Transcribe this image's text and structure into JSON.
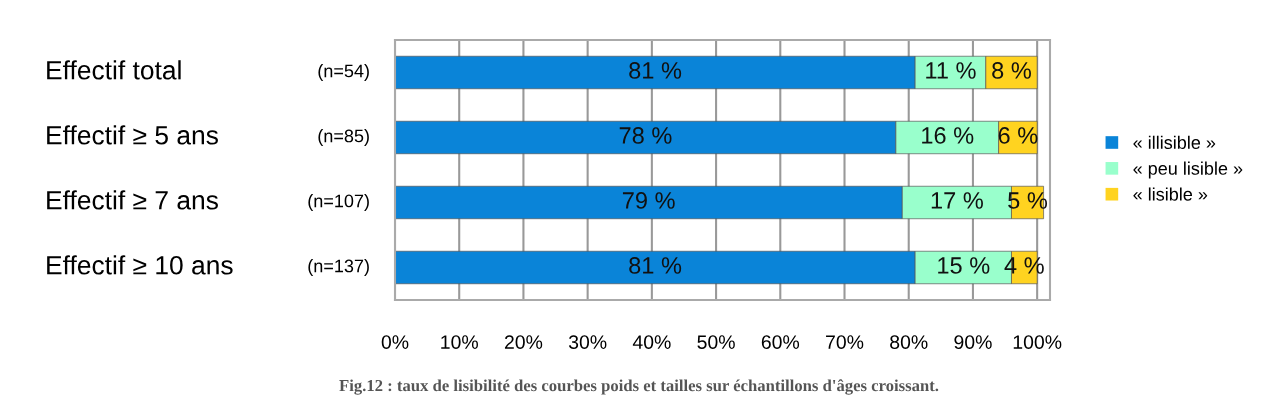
{
  "chart_data": {
    "type": "bar",
    "orientation": "horizontal",
    "stacked": true,
    "categories": [
      "Effectif total",
      "Effectif ≥ 5 ans",
      "Effectif ≥ 7 ans",
      "Effectif ≥ 10 ans"
    ],
    "series": [
      {
        "name": "« illisible »",
        "color": "#0a84d8",
        "values": [
          81,
          78,
          79,
          81
        ],
        "value_labels": [
          "81 %",
          "78 %",
          "79 %",
          "81 %"
        ]
      },
      {
        "name": "« peu lisible »",
        "color": "#99ffcc",
        "values": [
          11,
          16,
          17,
          15
        ],
        "value_labels": [
          "11 %",
          "16 %",
          "17 %",
          "15 %"
        ]
      },
      {
        "name": "« lisible »",
        "color": "#ffd320",
        "values": [
          8,
          6,
          5,
          4
        ],
        "value_labels": [
          "8 %",
          "6 %",
          "5 %",
          "4 %"
        ]
      }
    ],
    "xlim": [
      0,
      102
    ],
    "xticks": [
      {
        "value": 0,
        "label": "0%"
      },
      {
        "value": 10,
        "label": "10%"
      },
      {
        "value": 20,
        "label": "20%"
      },
      {
        "value": 30,
        "label": "30%"
      },
      {
        "value": 40,
        "label": "40%"
      },
      {
        "value": 50,
        "label": "50%"
      },
      {
        "value": 60,
        "label": "60%"
      },
      {
        "value": 70,
        "label": "70%"
      },
      {
        "value": 80,
        "label": "80%"
      },
      {
        "value": 90,
        "label": "90%"
      },
      {
        "value": 100,
        "label": "100%"
      }
    ],
    "grid": "x",
    "legend": "right",
    "annotations": [
      "(n=54)",
      "(n=85)",
      "(n=107)",
      "(n=137)",
      "Fig.12 : taux de lisibilité des courbes poids et tailles sur échantillons d'âges croissant."
    ]
  }
}
